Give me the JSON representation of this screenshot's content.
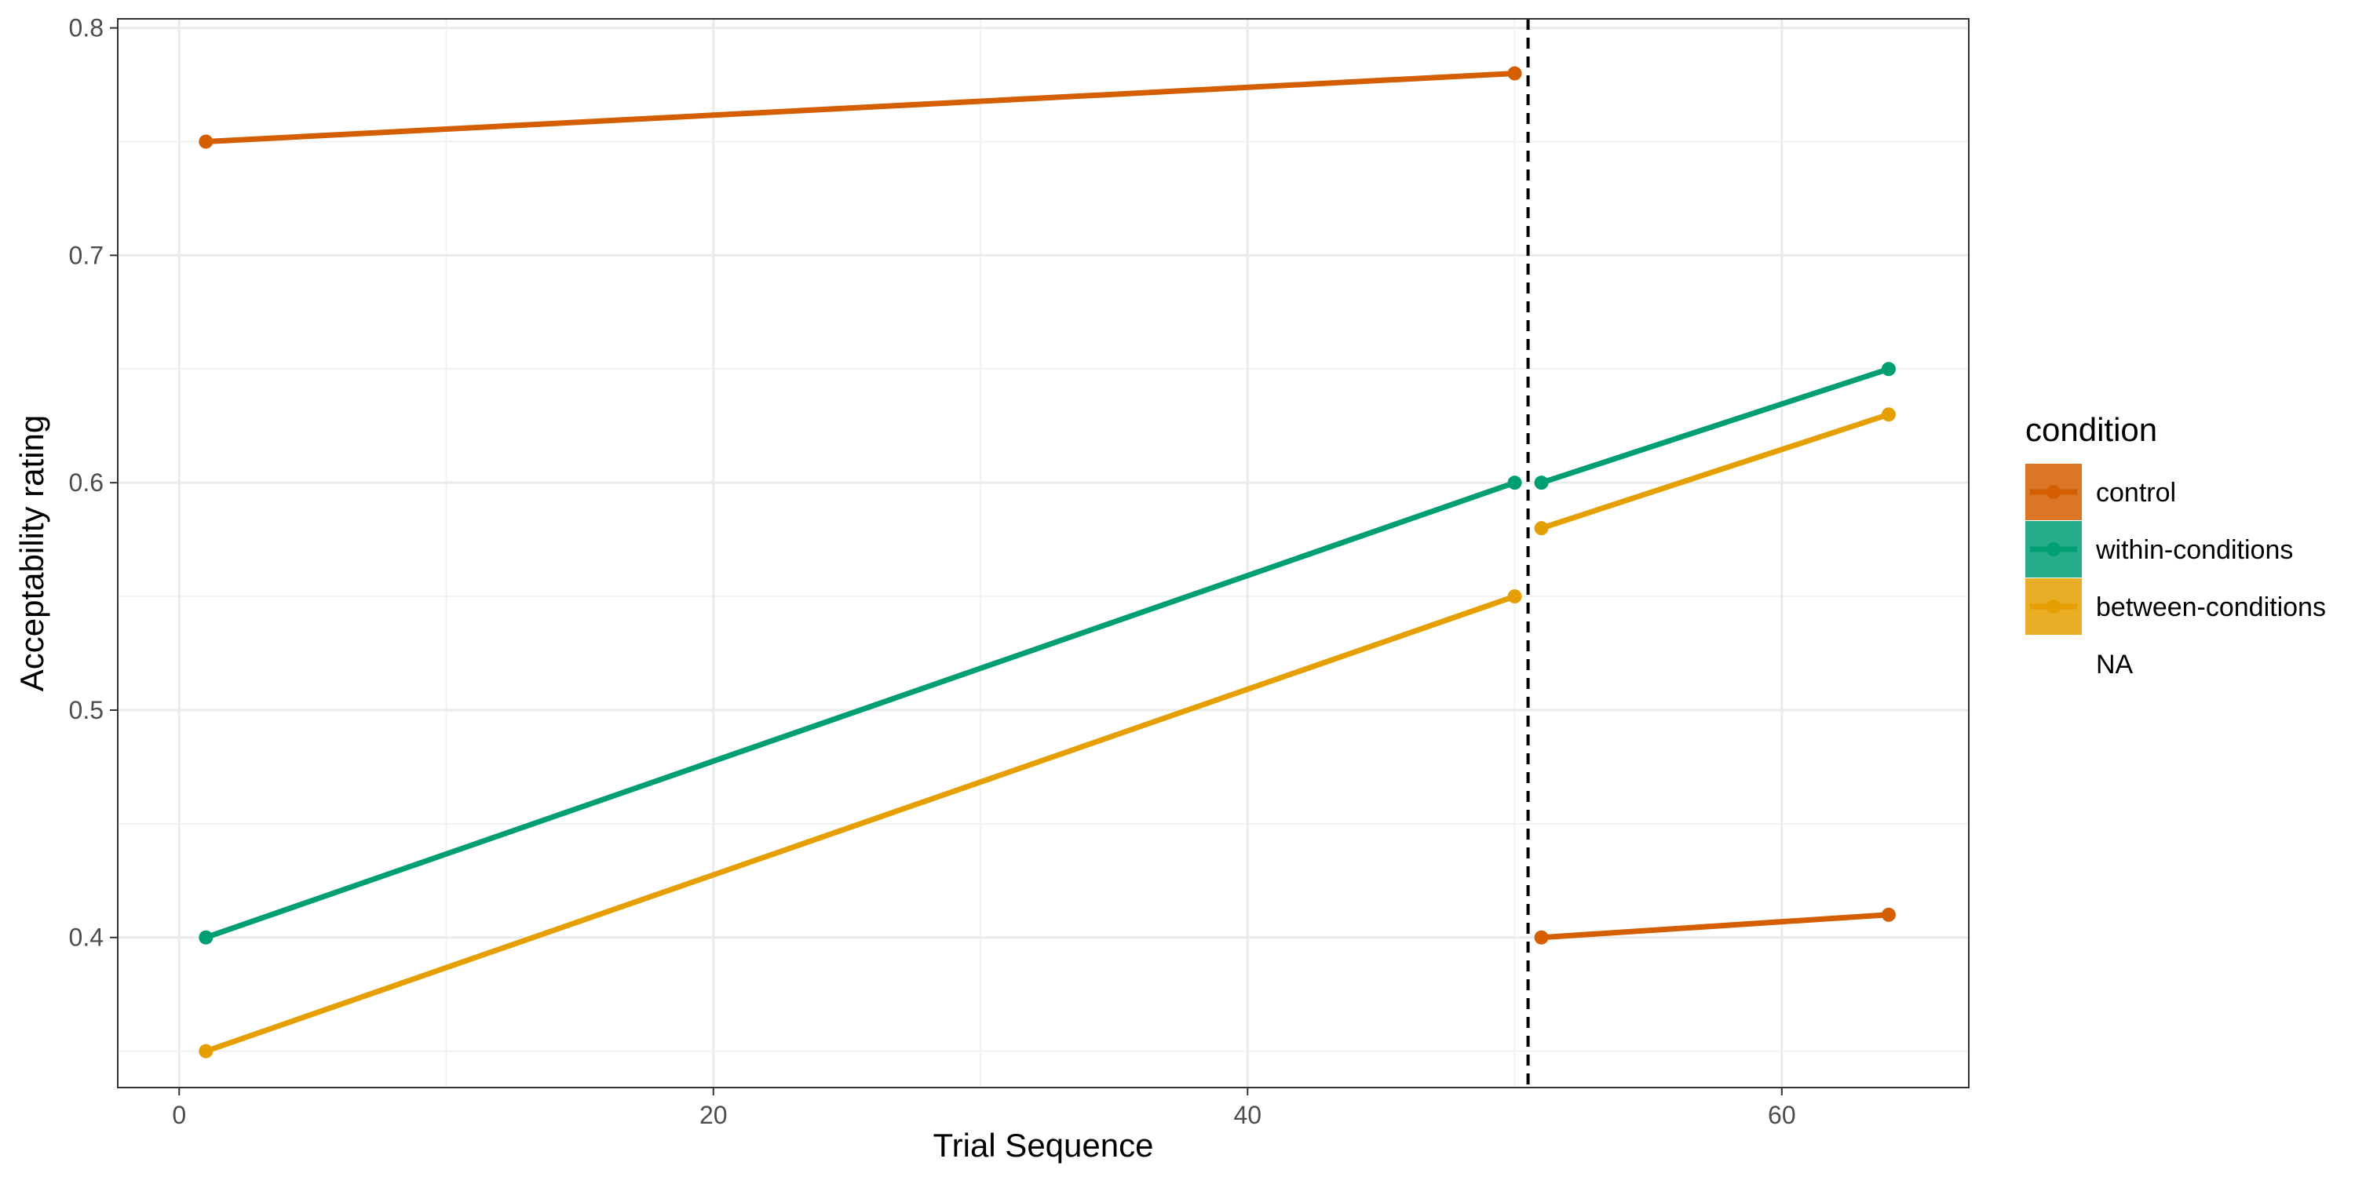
{
  "chart_data": {
    "type": "line",
    "xlabel": "Trial Sequence",
    "ylabel": "Acceptability rating",
    "xlim": [
      -2.3,
      67.0
    ],
    "ylim": [
      0.334,
      0.804
    ],
    "x_ticks": [
      0,
      20,
      40,
      60
    ],
    "x_tick_labels": [
      "0",
      "20",
      "40",
      "60"
    ],
    "x_minor_ticks": [
      10,
      30,
      50
    ],
    "y_ticks": [
      0.4,
      0.5,
      0.6,
      0.7,
      0.8
    ],
    "y_tick_labels": [
      "0.4",
      "0.5",
      "0.6",
      "0.7",
      "0.8"
    ],
    "y_minor_ticks": [
      0.35,
      0.45,
      0.55,
      0.65,
      0.75
    ],
    "grid": true,
    "vline": {
      "x": 50.5,
      "style": "dashed",
      "color": "#000000"
    },
    "legend": {
      "title": "condition",
      "position": "right",
      "entries": [
        {
          "label": "control",
          "color": "#D55E00"
        },
        {
          "label": "within-conditions",
          "color": "#009E73"
        },
        {
          "label": "between-conditions",
          "color": "#E69F00"
        },
        {
          "label": "NA",
          "color": null
        }
      ]
    },
    "series": [
      {
        "name": "control",
        "color": "#D55E00",
        "segments": [
          {
            "x": [
              1,
              50
            ],
            "y": [
              0.75,
              0.78
            ]
          },
          {
            "x": [
              51,
              64
            ],
            "y": [
              0.4,
              0.41
            ]
          }
        ]
      },
      {
        "name": "within-conditions",
        "color": "#009E73",
        "segments": [
          {
            "x": [
              1,
              50
            ],
            "y": [
              0.4,
              0.6
            ]
          },
          {
            "x": [
              51,
              64
            ],
            "y": [
              0.6,
              0.65
            ]
          }
        ]
      },
      {
        "name": "between-conditions",
        "color": "#E69F00",
        "segments": [
          {
            "x": [
              1,
              50
            ],
            "y": [
              0.35,
              0.55
            ]
          },
          {
            "x": [
              51,
              64
            ],
            "y": [
              0.58,
              0.63
            ]
          }
        ]
      }
    ]
  }
}
